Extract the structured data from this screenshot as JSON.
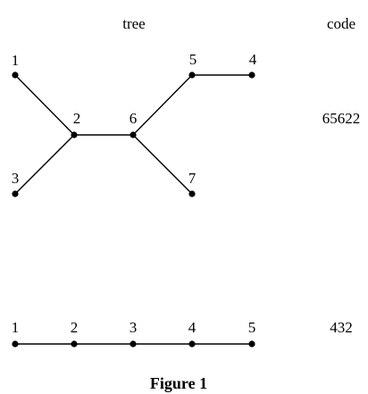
{
  "headers": {
    "tree": "tree",
    "code": "code"
  },
  "tree1": {
    "nodes": [
      "1",
      "2",
      "3",
      "4",
      "5",
      "6",
      "7"
    ],
    "edges": [
      [
        "1",
        "2"
      ],
      [
        "3",
        "2"
      ],
      [
        "2",
        "6"
      ],
      [
        "6",
        "5"
      ],
      [
        "5",
        "4"
      ],
      [
        "6",
        "7"
      ]
    ],
    "code": "65622"
  },
  "tree2": {
    "nodes": [
      "1",
      "2",
      "3",
      "4",
      "5"
    ],
    "edges": [
      [
        "1",
        "2"
      ],
      [
        "2",
        "3"
      ],
      [
        "3",
        "4"
      ],
      [
        "4",
        "5"
      ]
    ],
    "code": "432"
  },
  "caption": "Figure 1"
}
